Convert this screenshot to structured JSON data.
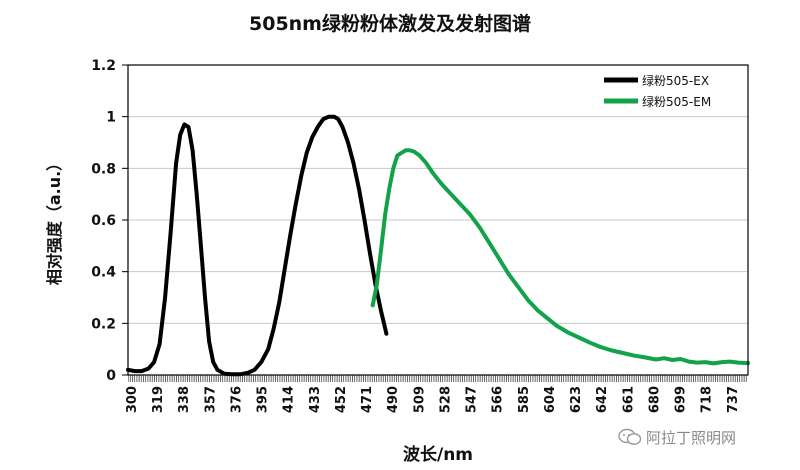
{
  "chart_data": {
    "type": "line",
    "title": "505nm绿粉粉体激发及发射图谱",
    "xlabel": "波长/nm",
    "ylabel": "相对强度（a.u.）",
    "xlim": [
      300,
      751
    ],
    "ylim": [
      0,
      1.2
    ],
    "yticks": [
      "0",
      "0.2",
      "0.4",
      "0.6",
      "0.8",
      "1",
      "1.2"
    ],
    "xticks": [
      "300",
      "319",
      "338",
      "357",
      "376",
      "395",
      "414",
      "433",
      "452",
      "471",
      "490",
      "509",
      "528",
      "547",
      "566",
      "585",
      "604",
      "623",
      "642",
      "661",
      "680",
      "699",
      "718",
      "737"
    ],
    "grid": true,
    "legend_position": "top-right",
    "series": [
      {
        "name": "绿粉505-EX",
        "color": "#000000",
        "points": [
          [
            300,
            0.02
          ],
          [
            305,
            0.015
          ],
          [
            310,
            0.015
          ],
          [
            315,
            0.025
          ],
          [
            319,
            0.05
          ],
          [
            323,
            0.12
          ],
          [
            327,
            0.3
          ],
          [
            331,
            0.55
          ],
          [
            335,
            0.82
          ],
          [
            338,
            0.93
          ],
          [
            341,
            0.97
          ],
          [
            344,
            0.96
          ],
          [
            347,
            0.87
          ],
          [
            350,
            0.7
          ],
          [
            353,
            0.5
          ],
          [
            356,
            0.3
          ],
          [
            359,
            0.13
          ],
          [
            362,
            0.05
          ],
          [
            365,
            0.02
          ],
          [
            370,
            0.005
          ],
          [
            376,
            0.003
          ],
          [
            382,
            0.003
          ],
          [
            387,
            0.008
          ],
          [
            392,
            0.02
          ],
          [
            397,
            0.05
          ],
          [
            402,
            0.1
          ],
          [
            406,
            0.18
          ],
          [
            410,
            0.28
          ],
          [
            414,
            0.41
          ],
          [
            418,
            0.54
          ],
          [
            422,
            0.66
          ],
          [
            426,
            0.77
          ],
          [
            430,
            0.86
          ],
          [
            434,
            0.92
          ],
          [
            438,
            0.96
          ],
          [
            442,
            0.99
          ],
          [
            446,
            1.0
          ],
          [
            450,
            1.0
          ],
          [
            453,
            0.99
          ],
          [
            456,
            0.96
          ],
          [
            460,
            0.9
          ],
          [
            464,
            0.82
          ],
          [
            468,
            0.72
          ],
          [
            472,
            0.6
          ],
          [
            476,
            0.47
          ],
          [
            480,
            0.35
          ],
          [
            484,
            0.25
          ],
          [
            488,
            0.16
          ]
        ]
      },
      {
        "name": "绿粉505-EM",
        "color": "#12a34a",
        "points": [
          [
            478,
            0.27
          ],
          [
            481,
            0.35
          ],
          [
            484,
            0.48
          ],
          [
            487,
            0.62
          ],
          [
            490,
            0.72
          ],
          [
            493,
            0.8
          ],
          [
            496,
            0.85
          ],
          [
            499,
            0.86
          ],
          [
            502,
            0.87
          ],
          [
            505,
            0.87
          ],
          [
            508,
            0.865
          ],
          [
            512,
            0.85
          ],
          [
            517,
            0.82
          ],
          [
            522,
            0.78
          ],
          [
            528,
            0.74
          ],
          [
            535,
            0.7
          ],
          [
            542,
            0.66
          ],
          [
            549,
            0.62
          ],
          [
            556,
            0.57
          ],
          [
            563,
            0.51
          ],
          [
            570,
            0.45
          ],
          [
            577,
            0.39
          ],
          [
            584,
            0.34
          ],
          [
            591,
            0.29
          ],
          [
            598,
            0.25
          ],
          [
            605,
            0.22
          ],
          [
            612,
            0.19
          ],
          [
            620,
            0.165
          ],
          [
            628,
            0.145
          ],
          [
            636,
            0.125
          ],
          [
            644,
            0.108
          ],
          [
            652,
            0.095
          ],
          [
            660,
            0.085
          ],
          [
            668,
            0.075
          ],
          [
            676,
            0.068
          ],
          [
            684,
            0.06
          ],
          [
            690,
            0.065
          ],
          [
            696,
            0.058
          ],
          [
            702,
            0.062
          ],
          [
            708,
            0.052
          ],
          [
            714,
            0.048
          ],
          [
            720,
            0.05
          ],
          [
            726,
            0.045
          ],
          [
            732,
            0.05
          ],
          [
            738,
            0.052
          ],
          [
            744,
            0.048
          ],
          [
            751,
            0.046
          ]
        ]
      }
    ]
  },
  "watermark": {
    "text": "阿拉丁照明网"
  }
}
